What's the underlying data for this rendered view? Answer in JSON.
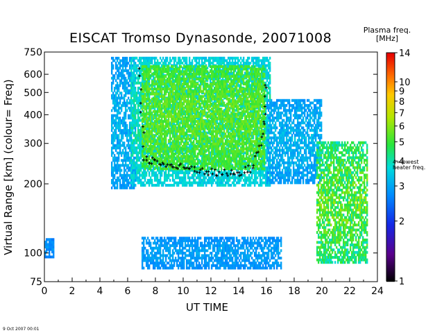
{
  "chart_data": {
    "type": "heatmap",
    "title": "EISCAT Tromso Dynasonde,  20071008",
    "xlabel": "UT TIME",
    "ylabel": "Virtual Range [km]  (colour= Freq)",
    "x_ticks": [
      0,
      2,
      4,
      6,
      8,
      10,
      12,
      14,
      16,
      18,
      20,
      22,
      24
    ],
    "xlim": [
      0,
      24
    ],
    "y_scale": "log",
    "ylim": [
      75,
      750
    ],
    "y_ticks": [
      75,
      100,
      200,
      300,
      400,
      500,
      600,
      750
    ],
    "colorbar": {
      "title_line1": "Plasma freq.",
      "title_line2": "[MHz]",
      "scale": "log",
      "range": [
        1,
        14
      ],
      "ticks": [
        1,
        2,
        3,
        4,
        5,
        6,
        7,
        8,
        9,
        10,
        14
      ],
      "annotation_line1": "4=lowest",
      "annotation_line2": "heater freq."
    },
    "regions": [
      {
        "t0": 0.0,
        "t1": 0.7,
        "h0": 95,
        "h1": 115,
        "f0": 2.4,
        "f1": 3.0
      },
      {
        "t0": 4.8,
        "t1": 6.5,
        "h0": 190,
        "h1": 700,
        "f0": 2.5,
        "f1": 3.5
      },
      {
        "t0": 6.2,
        "t1": 16.2,
        "h0": 195,
        "h1": 700,
        "f0": 3.0,
        "f1": 4.5
      },
      {
        "t0": 7.0,
        "t1": 15.8,
        "h0": 230,
        "h1": 650,
        "f0": 4.5,
        "f1": 6.0
      },
      {
        "t0": 16.0,
        "t1": 20.0,
        "h0": 200,
        "h1": 460,
        "f0": 2.5,
        "f1": 3.5
      },
      {
        "t0": 7.0,
        "t1": 17.0,
        "h0": 85,
        "h1": 115,
        "f0": 2.5,
        "f1": 3.2
      },
      {
        "t0": 19.6,
        "t1": 23.3,
        "h0": 90,
        "h1": 300,
        "f0": 3.0,
        "f1": 6.5
      }
    ],
    "heater_trace": [
      {
        "t": 6.8,
        "h": 650
      },
      {
        "t": 7.2,
        "h": 260
      },
      {
        "t": 8.0,
        "h": 250
      },
      {
        "t": 9.0,
        "h": 240
      },
      {
        "t": 10.0,
        "h": 235
      },
      {
        "t": 11.0,
        "h": 232
      },
      {
        "t": 12.0,
        "h": 225
      },
      {
        "t": 13.0,
        "h": 222
      },
      {
        "t": 14.0,
        "h": 222
      },
      {
        "t": 15.0,
        "h": 235
      },
      {
        "t": 15.8,
        "h": 330
      },
      {
        "t": 16.0,
        "h": 600
      }
    ]
  },
  "footer": "9 Oct 2007 00:01"
}
